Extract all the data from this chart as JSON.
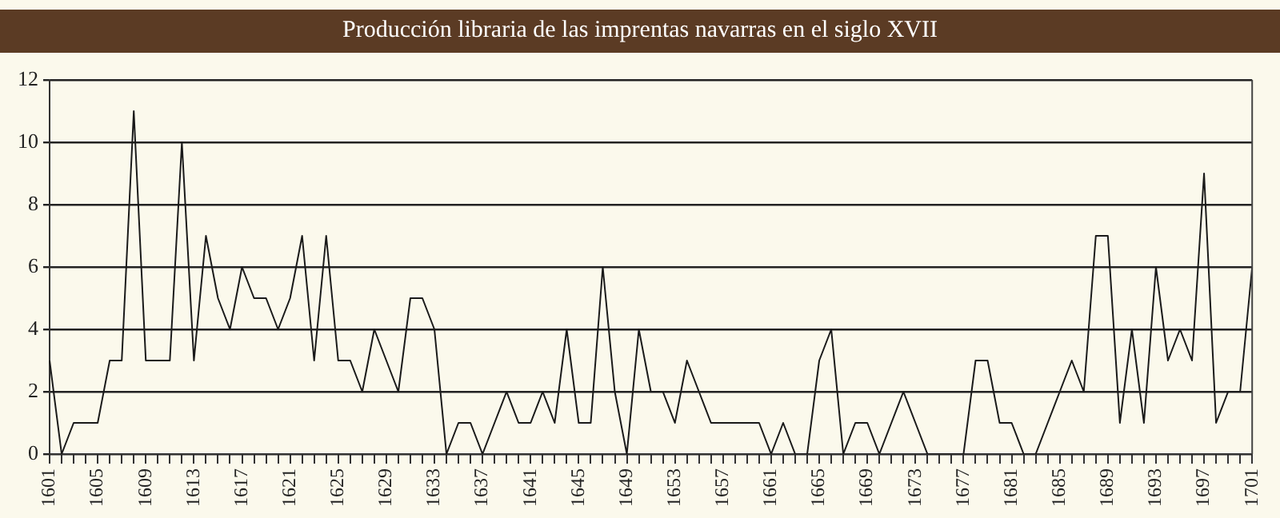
{
  "chart_data": {
    "type": "line",
    "title": "Producción libraria de las imprentas navarras en el siglo XVII",
    "categories": [
      "1601",
      null,
      null,
      null,
      "1605",
      null,
      null,
      null,
      "1609",
      null,
      null,
      null,
      "1613",
      null,
      null,
      null,
      "1617",
      null,
      null,
      null,
      "1621",
      null,
      null,
      null,
      "1625",
      null,
      null,
      null,
      "1629",
      null,
      null,
      null,
      "1633",
      null,
      null,
      null,
      "1637",
      null,
      null,
      null,
      "1641",
      null,
      null,
      null,
      "1645",
      null,
      null,
      null,
      "1649",
      null,
      null,
      null,
      "1653",
      null,
      null,
      null,
      "1657",
      null,
      null,
      null,
      "1661",
      null,
      null,
      null,
      "1665",
      null,
      null,
      null,
      "1669",
      null,
      null,
      null,
      "1673",
      null,
      null,
      null,
      "1677",
      null,
      null,
      null,
      "1681",
      null,
      null,
      null,
      "1685",
      null,
      null,
      null,
      "1689",
      null,
      null,
      null,
      "1693",
      null,
      null,
      null,
      "1697",
      null,
      null,
      null,
      "1701"
    ],
    "values": [
      3,
      0,
      1,
      1,
      1,
      3,
      3,
      11,
      3,
      3,
      3,
      10,
      3,
      7,
      5,
      4,
      6,
      5,
      5,
      4,
      5,
      7,
      3,
      7,
      3,
      3,
      2,
      4,
      3,
      2,
      5,
      5,
      4,
      0,
      1,
      1,
      0,
      1,
      2,
      1,
      1,
      2,
      1,
      4,
      1,
      1,
      6,
      2,
      0,
      4,
      2,
      2,
      1,
      3,
      2,
      1,
      1,
      1,
      1,
      1,
      0,
      1,
      0,
      0,
      3,
      4,
      0,
      1,
      1,
      0,
      1,
      2,
      1,
      0,
      0,
      0,
      0,
      3,
      3,
      1,
      1,
      0,
      0,
      1,
      2,
      3,
      2,
      7,
      7,
      1,
      4,
      1,
      6,
      3,
      4,
      3,
      9,
      1,
      2,
      2,
      6
    ],
    "color": "#1a1a1a",
    "ylim": [
      0,
      12
    ],
    "yticks": [
      0,
      2,
      4,
      6,
      8,
      10,
      12
    ],
    "grid": "y",
    "marker": "none"
  }
}
